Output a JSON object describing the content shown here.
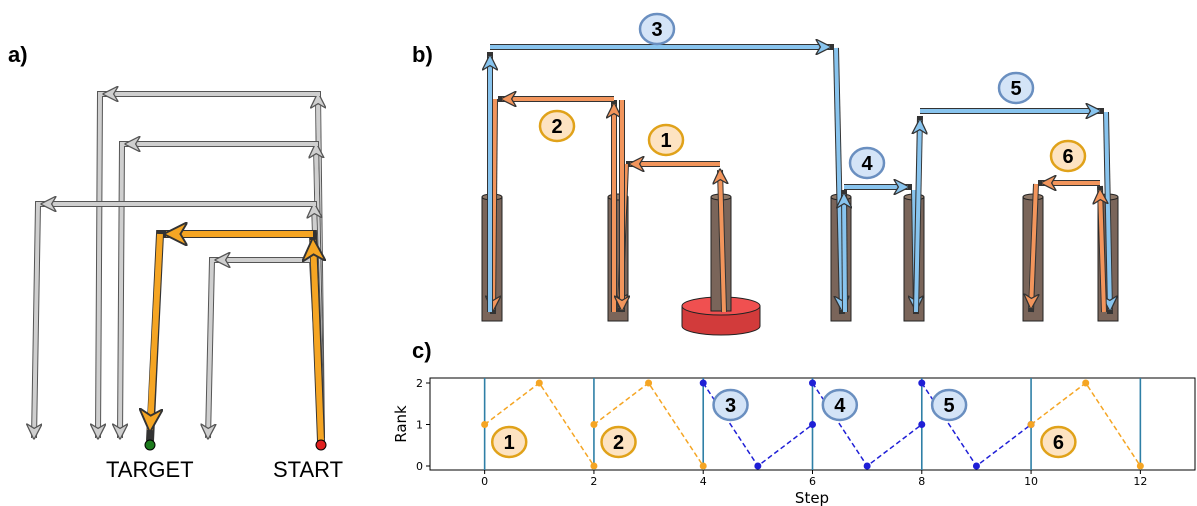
{
  "panels": {
    "a": "a)",
    "b": "b)",
    "c": "c)"
  },
  "panel_a": {
    "target_label": "TARGET",
    "start_label": "START"
  },
  "panel_b": {
    "move_badges": [
      "1",
      "2",
      "3",
      "4",
      "5",
      "6"
    ]
  },
  "colors": {
    "orange": "#f5a523",
    "blue": "#1f1fd6",
    "gray": "#bdbdbd",
    "badge_orange_fill": "#fde3c2",
    "badge_blue_fill": "#d4e4f7"
  },
  "chart_data": {
    "type": "line",
    "xlabel": "Step",
    "ylabel": "Rank",
    "xticks": [
      "0",
      "2",
      "4",
      "6",
      "8",
      "10",
      "12"
    ],
    "yticks": [
      "0",
      "1",
      "2"
    ],
    "xlim": [
      -1,
      13
    ],
    "ylim": [
      0,
      2
    ],
    "vlines": [
      0,
      2,
      4,
      6,
      8,
      10,
      12
    ],
    "segments": [
      {
        "move": "1",
        "color": "orange",
        "x": [
          0,
          1,
          2
        ],
        "y": [
          1,
          2,
          0
        ]
      },
      {
        "move": "2",
        "color": "orange",
        "x": [
          2,
          3,
          4
        ],
        "y": [
          1,
          2,
          0
        ]
      },
      {
        "move": "3",
        "color": "blue",
        "x": [
          4,
          5,
          6
        ],
        "y": [
          2,
          0,
          1
        ]
      },
      {
        "move": "4",
        "color": "blue",
        "x": [
          6,
          7,
          8
        ],
        "y": [
          2,
          0,
          1
        ]
      },
      {
        "move": "5",
        "color": "blue",
        "x": [
          8,
          9,
          10
        ],
        "y": [
          2,
          0,
          1
        ]
      },
      {
        "move": "6",
        "color": "orange",
        "x": [
          10,
          11,
          12
        ],
        "y": [
          1,
          2,
          0
        ]
      }
    ],
    "badges": [
      "1",
      "2",
      "3",
      "4",
      "5",
      "6"
    ]
  }
}
